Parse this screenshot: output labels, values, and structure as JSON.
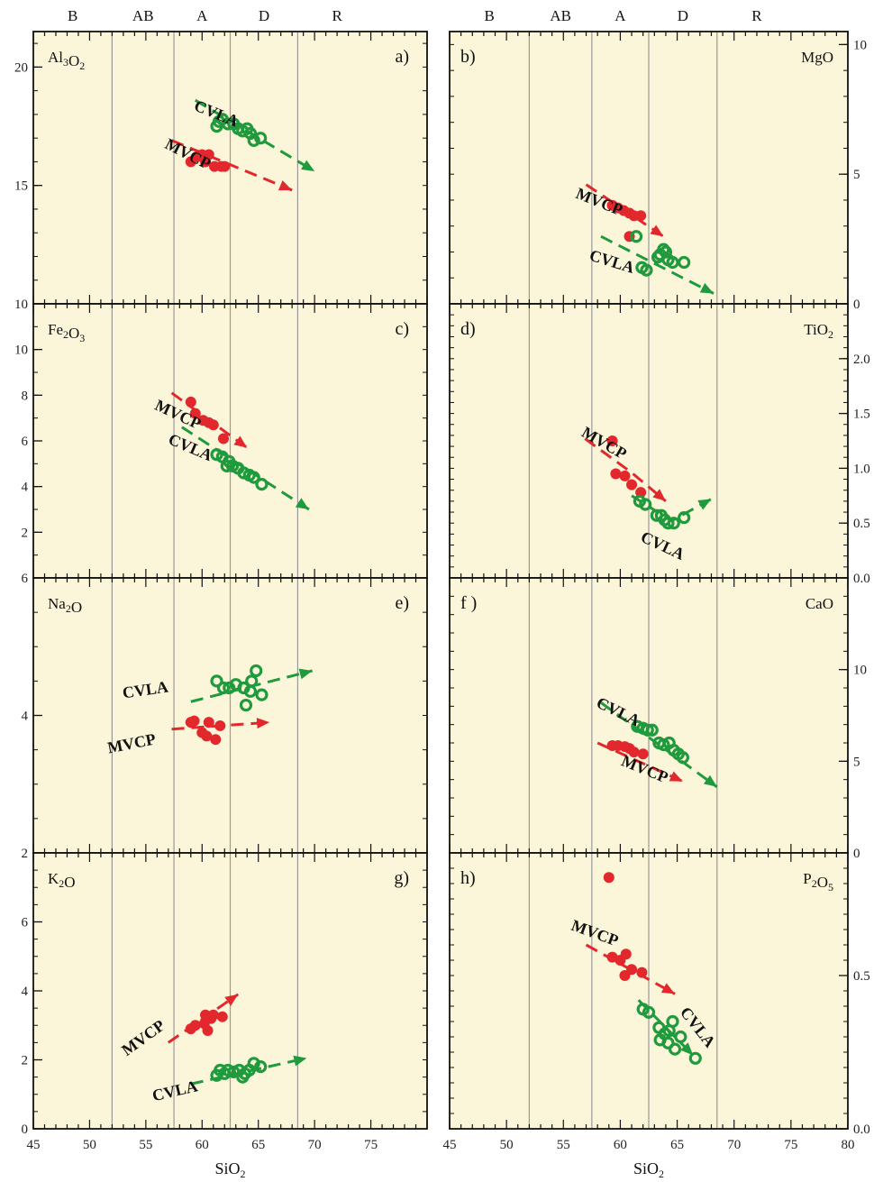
{
  "colors": {
    "panel_bg": "#fbf6d9",
    "mvcp": "#e2282d",
    "cvla": "#1f9a3c",
    "divider": "#999999",
    "frame": "#111111"
  },
  "zones": [
    "B",
    "AB",
    "A",
    "D",
    "R"
  ],
  "zone_bounds": [
    52,
    57.5,
    62.5,
    68.5
  ],
  "x_axis": {
    "label": "SiO",
    "label_sub": "2",
    "left": {
      "xlim": [
        45,
        80
      ],
      "ticks": [
        45,
        50,
        55,
        60,
        65,
        70,
        75
      ]
    },
    "right": {
      "xlim": [
        45,
        80
      ],
      "ticks": [
        45,
        50,
        55,
        60,
        65,
        70,
        75,
        80
      ]
    }
  },
  "chart_data": [
    {
      "type": "scatter",
      "panel": "a)",
      "oxide": "Al",
      "oxide_parts": [
        [
          "Al",
          ""
        ],
        [
          "3",
          "sub"
        ],
        [
          "O",
          ""
        ],
        [
          "2",
          "sub"
        ]
      ],
      "ylim": [
        10,
        21.5
      ],
      "yticks": [
        10,
        15,
        20
      ],
      "yaxis_side": "left",
      "series": [
        {
          "name": "CVLA",
          "marker": "ring",
          "points": [
            [
              61.3,
              17.5
            ],
            [
              61.8,
              17.8
            ],
            [
              62.3,
              17.6
            ],
            [
              62.8,
              17.6
            ],
            [
              63.2,
              17.4
            ],
            [
              63.6,
              17.3
            ],
            [
              64.0,
              17.4
            ],
            [
              64.3,
              17.2
            ],
            [
              64.6,
              16.9
            ],
            [
              65.2,
              17.0
            ],
            [
              61.5,
              17.7
            ]
          ],
          "trend": [
            [
              59.4,
              18.6
            ],
            [
              70,
              15.6
            ]
          ],
          "label": "CVLA",
          "label_pos": [
            59.2,
            18.2
          ],
          "label_angle": 22
        },
        {
          "name": "MVCP",
          "marker": "dot",
          "points": [
            [
              59.0,
              16.0
            ],
            [
              59.5,
              16.2
            ],
            [
              60.0,
              16.3
            ],
            [
              60.3,
              16.0
            ],
            [
              60.6,
              16.3
            ],
            [
              61.1,
              15.8
            ],
            [
              61.7,
              15.8
            ],
            [
              62.0,
              15.8
            ]
          ],
          "trend": [
            [
              57.3,
              16.9
            ],
            [
              68,
              14.8
            ]
          ],
          "label": "MVCP",
          "label_pos": [
            56.6,
            16.6
          ],
          "label_angle": 27
        }
      ]
    },
    {
      "type": "scatter",
      "panel": "b)",
      "oxide": "MgO",
      "oxide_parts": [
        [
          "MgO",
          ""
        ]
      ],
      "ylim": [
        0,
        10.5
      ],
      "yticks": [
        0,
        5,
        10
      ],
      "yaxis_side": "right",
      "series": [
        {
          "name": "MVCP",
          "marker": "dot",
          "points": [
            [
              59.3,
              3.8
            ],
            [
              59.8,
              3.7
            ],
            [
              60.3,
              3.6
            ],
            [
              60.8,
              3.5
            ],
            [
              61.2,
              3.4
            ],
            [
              61.8,
              3.4
            ],
            [
              60.8,
              2.6
            ]
          ],
          "trend": [
            [
              57.0,
              4.6
            ],
            [
              63.8,
              2.6
            ]
          ],
          "label": "MVCP",
          "label_pos": [
            56.0,
            4.1
          ],
          "label_angle": 22
        },
        {
          "name": "CVLA",
          "marker": "ring",
          "points": [
            [
              61.4,
              2.6
            ],
            [
              63.8,
              2.1
            ],
            [
              63.5,
              1.9
            ],
            [
              64.2,
              1.7
            ],
            [
              64.6,
              1.6
            ],
            [
              65.6,
              1.6
            ],
            [
              62.3,
              1.3
            ],
            [
              61.9,
              1.4
            ],
            [
              63.3,
              1.8
            ],
            [
              64.0,
              2.0
            ]
          ],
          "trend": [
            [
              58.3,
              2.6
            ],
            [
              68.2,
              0.4
            ]
          ],
          "label": "CVLA",
          "label_pos": [
            57.2,
            1.7
          ],
          "label_angle": 17
        }
      ]
    },
    {
      "type": "scatter",
      "panel": "c)",
      "oxide": "Fe",
      "oxide_parts": [
        [
          "Fe",
          ""
        ],
        [
          "2",
          "sub"
        ],
        [
          "O",
          ""
        ],
        [
          "3",
          "sub"
        ]
      ],
      "ylim": [
        0,
        12
      ],
      "yticks": [
        2,
        4,
        6,
        8,
        10
      ],
      "yaxis_side": "left",
      "series": [
        {
          "name": "MVCP",
          "marker": "dot",
          "points": [
            [
              59.0,
              7.7
            ],
            [
              59.4,
              7.2
            ],
            [
              60.1,
              6.9
            ],
            [
              60.6,
              6.8
            ],
            [
              61.0,
              6.7
            ],
            [
              61.9,
              6.1
            ]
          ],
          "trend": [
            [
              57.3,
              8.1
            ],
            [
              64,
              5.7
            ]
          ],
          "label": "MVCP",
          "label_pos": [
            55.7,
            7.4
          ],
          "label_angle": 25
        },
        {
          "name": "CVLA",
          "marker": "ring",
          "points": [
            [
              61.3,
              5.4
            ],
            [
              61.8,
              5.3
            ],
            [
              62.4,
              5.1
            ],
            [
              62.7,
              4.9
            ],
            [
              63.2,
              4.8
            ],
            [
              63.7,
              4.6
            ],
            [
              64.2,
              4.5
            ],
            [
              64.6,
              4.4
            ],
            [
              65.3,
              4.1
            ],
            [
              62.2,
              4.9
            ]
          ],
          "trend": [
            [
              58.2,
              6.6
            ],
            [
              69.5,
              3.0
            ]
          ],
          "label": "CVLA",
          "label_pos": [
            56.9,
            5.9
          ],
          "label_angle": 23
        }
      ]
    },
    {
      "type": "scatter",
      "panel": "d)",
      "oxide": "TiO",
      "oxide_parts": [
        [
          "TiO",
          ""
        ],
        [
          "2",
          "sub"
        ]
      ],
      "ylim": [
        0,
        2.5
      ],
      "yticks": [
        0.0,
        0.5,
        1.0,
        1.5,
        2.0
      ],
      "yaxis_side": "right",
      "series": [
        {
          "name": "MVCP",
          "marker": "dot",
          "points": [
            [
              59.3,
              1.25
            ],
            [
              59.6,
              0.95
            ],
            [
              60.4,
              0.93
            ],
            [
              61.0,
              0.85
            ],
            [
              61.8,
              0.78
            ]
          ],
          "trend": [
            [
              56.9,
              1.27
            ],
            [
              61.0,
              0.96
            ],
            [
              64.0,
              0.7
            ]
          ],
          "label": "MVCP",
          "label_pos": [
            56.5,
            1.3
          ],
          "label_angle": 30
        },
        {
          "name": "CVLA",
          "marker": "ring",
          "points": [
            [
              61.7,
              0.7
            ],
            [
              62.2,
              0.67
            ],
            [
              63.2,
              0.57
            ],
            [
              63.6,
              0.57
            ],
            [
              63.9,
              0.53
            ],
            [
              64.2,
              0.5
            ],
            [
              64.7,
              0.5
            ],
            [
              65.6,
              0.55
            ]
          ],
          "trend": [
            [
              61.0,
              0.75
            ],
            [
              64.5,
              0.52
            ],
            [
              68.0,
              0.72
            ]
          ],
          "label": "CVLA",
          "label_pos": [
            61.7,
            0.34
          ],
          "label_angle": 25
        }
      ]
    },
    {
      "type": "scatter",
      "panel": "e)",
      "oxide": "Na",
      "oxide_parts": [
        [
          "Na",
          ""
        ],
        [
          "2",
          "sub"
        ],
        [
          "O",
          ""
        ]
      ],
      "ylim": [
        2,
        6
      ],
      "yticks": [
        2,
        4,
        6
      ],
      "yaxis_side": "left",
      "series": [
        {
          "name": "CVLA",
          "marker": "ring",
          "points": [
            [
              61.3,
              4.5
            ],
            [
              61.9,
              4.4
            ],
            [
              62.4,
              4.4
            ],
            [
              63.0,
              4.45
            ],
            [
              63.7,
              4.4
            ],
            [
              64.4,
              4.5
            ],
            [
              64.8,
              4.65
            ],
            [
              65.3,
              4.3
            ],
            [
              63.9,
              4.15
            ],
            [
              64.3,
              4.35
            ]
          ],
          "trend": [
            [
              59.0,
              4.2
            ],
            [
              69.8,
              4.65
            ]
          ],
          "label": "CVLA",
          "label_pos": [
            53.0,
            4.25
          ],
          "label_angle": -8
        },
        {
          "name": "MVCP",
          "marker": "dot",
          "points": [
            [
              59.0,
              3.9
            ],
            [
              59.3,
              3.92
            ],
            [
              60.6,
              3.9
            ],
            [
              61.6,
              3.85
            ],
            [
              60.4,
              3.7
            ],
            [
              61.2,
              3.65
            ],
            [
              60.0,
              3.75
            ]
          ],
          "trend": [
            [
              57.3,
              3.8
            ],
            [
              66.0,
              3.9
            ]
          ],
          "label": "MVCP",
          "label_pos": [
            51.7,
            3.45
          ],
          "label_angle": -11
        }
      ]
    },
    {
      "type": "scatter",
      "panel": "f )",
      "oxide": "CaO",
      "oxide_parts": [
        [
          "CaO",
          ""
        ]
      ],
      "ylim": [
        0,
        15
      ],
      "yticks": [
        0,
        5,
        10
      ],
      "yaxis_side": "right",
      "series": [
        {
          "name": "CVLA",
          "marker": "ring",
          "points": [
            [
              61.5,
              6.9
            ],
            [
              62.0,
              6.8
            ],
            [
              62.4,
              6.7
            ],
            [
              62.8,
              6.7
            ],
            [
              63.4,
              6.0
            ],
            [
              63.8,
              5.9
            ],
            [
              64.3,
              6.0
            ],
            [
              64.7,
              5.6
            ],
            [
              65.1,
              5.4
            ],
            [
              65.5,
              5.2
            ]
          ],
          "trend": [
            [
              58.3,
              8.2
            ],
            [
              68.5,
              3.6
            ]
          ],
          "label": "CVLA",
          "label_pos": [
            57.8,
            8.0
          ],
          "label_angle": 26
        },
        {
          "name": "MVCP",
          "marker": "dot",
          "points": [
            [
              59.3,
              5.85
            ],
            [
              59.8,
              5.85
            ],
            [
              60.4,
              5.8
            ],
            [
              60.8,
              5.7
            ],
            [
              61.2,
              5.5
            ],
            [
              62.0,
              5.4
            ]
          ],
          "trend": [
            [
              58.0,
              6.0
            ],
            [
              65.5,
              3.9
            ]
          ],
          "label": "MVCP",
          "label_pos": [
            60.0,
            4.8
          ],
          "label_angle": 22
        }
      ]
    },
    {
      "type": "scatter",
      "panel": "g)",
      "oxide": "K",
      "oxide_parts": [
        [
          "K",
          ""
        ],
        [
          "2",
          "sub"
        ],
        [
          "O",
          ""
        ]
      ],
      "ylim": [
        0,
        8
      ],
      "yticks": [
        0,
        2,
        4,
        6
      ],
      "yaxis_side": "left",
      "series": [
        {
          "name": "MVCP",
          "marker": "dot",
          "points": [
            [
              59.0,
              2.9
            ],
            [
              59.4,
              3.0
            ],
            [
              60.2,
              3.05
            ],
            [
              60.3,
              3.3
            ],
            [
              60.8,
              3.2
            ],
            [
              61.0,
              3.3
            ],
            [
              61.8,
              3.25
            ],
            [
              60.5,
              2.85
            ]
          ],
          "trend": [
            [
              57.0,
              2.5
            ],
            [
              63.2,
              3.9
            ]
          ],
          "label": "MVCP",
          "label_pos": [
            53.3,
            2.1
          ],
          "label_angle": -36
        },
        {
          "name": "CVLA",
          "marker": "ring",
          "points": [
            [
              61.3,
              1.55
            ],
            [
              61.6,
              1.7
            ],
            [
              62.3,
              1.7
            ],
            [
              62.8,
              1.65
            ],
            [
              63.3,
              1.7
            ],
            [
              63.8,
              1.6
            ],
            [
              64.2,
              1.7
            ],
            [
              64.6,
              1.9
            ],
            [
              65.2,
              1.8
            ],
            [
              63.6,
              1.5
            ],
            [
              62.0,
              1.6
            ]
          ],
          "trend": [
            [
              59.0,
              1.3
            ],
            [
              69.3,
              2.05
            ]
          ],
          "label": "CVLA",
          "label_pos": [
            55.7,
            0.8
          ],
          "label_angle": -13
        }
      ]
    },
    {
      "type": "scatter",
      "panel": "h)",
      "oxide": "P",
      "oxide_parts": [
        [
          "P",
          ""
        ],
        [
          "2",
          "sub"
        ],
        [
          "O",
          ""
        ],
        [
          "5",
          "sub"
        ]
      ],
      "ylim": [
        0,
        0.9
      ],
      "yticks": [
        0.0,
        0.5
      ],
      "yaxis_side": "right",
      "series": [
        {
          "name": "MVCP",
          "marker": "dot",
          "points": [
            [
              59.0,
              0.82
            ],
            [
              59.3,
              0.56
            ],
            [
              60.0,
              0.55
            ],
            [
              60.5,
              0.57
            ],
            [
              61.0,
              0.52
            ],
            [
              61.9,
              0.51
            ],
            [
              60.4,
              0.5
            ]
          ],
          "trend": [
            [
              57.0,
              0.6
            ],
            [
              64.8,
              0.44
            ]
          ],
          "label": "MVCP",
          "label_pos": [
            55.6,
            0.65
          ],
          "label_angle": 20
        },
        {
          "name": "CVLA",
          "marker": "ring",
          "points": [
            [
              62.0,
              0.39
            ],
            [
              62.5,
              0.38
            ],
            [
              64.6,
              0.35
            ],
            [
              63.4,
              0.33
            ],
            [
              63.9,
              0.31
            ],
            [
              64.3,
              0.32
            ],
            [
              65.3,
              0.3
            ],
            [
              63.5,
              0.29
            ],
            [
              64.2,
              0.28
            ],
            [
              64.8,
              0.26
            ],
            [
              66.6,
              0.23
            ]
          ],
          "trend": [
            [
              61.6,
              0.42
            ],
            [
              66.4,
              0.24
            ]
          ],
          "label": "CVLA",
          "label_pos": [
            65.2,
            0.38
          ],
          "label_angle": 52
        }
      ]
    }
  ]
}
